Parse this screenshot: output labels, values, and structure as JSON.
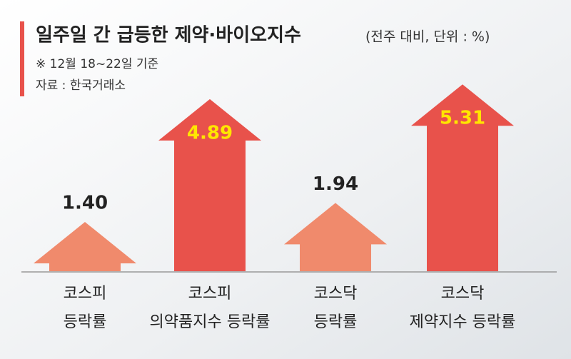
{
  "chart_data": {
    "type": "arrow-bar",
    "title": "일주일 간 급등한 제약·바이오지수",
    "subtitle": "(전주 대비, 단위 : %)",
    "notes": [
      "※ 12월 18~22일 기준",
      "자료 : 한국거래소"
    ],
    "categories": [
      [
        "코스피",
        "등락률"
      ],
      [
        "코스피",
        "의약품지수 등락률"
      ],
      [
        "코스닥",
        "등락률"
      ],
      [
        "코스닥",
        "제약지수 등락률"
      ]
    ],
    "values": [
      1.4,
      4.89,
      1.94,
      5.31
    ],
    "value_labels": [
      "1.40",
      "4.89",
      "1.94",
      "5.31"
    ],
    "colors": [
      "#f08a6c",
      "#e8524b",
      "#f08a6c",
      "#e8524b"
    ]
  }
}
